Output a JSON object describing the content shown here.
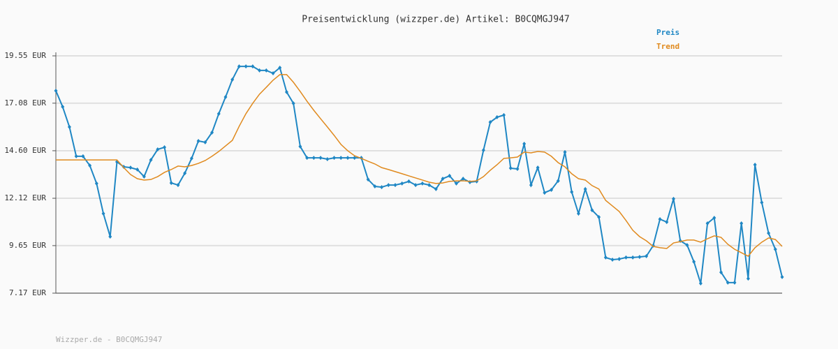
{
  "chart_data": {
    "type": "line",
    "title": "Preisentwicklung (wizzper.de) Artikel: B0CQMGJ947",
    "footer": "Wizzper.de - B0CQMGJ947",
    "ylim": [
      7.17,
      19.55
    ],
    "yticks": [
      {
        "value": 7.17,
        "label": "7.17 EUR"
      },
      {
        "value": 9.65,
        "label": "9.65 EUR"
      },
      {
        "value": 12.12,
        "label": "12.12 EUR"
      },
      {
        "value": 14.6,
        "label": "14.60 EUR"
      },
      {
        "value": 17.08,
        "label": "17.08 EUR"
      },
      {
        "value": 19.55,
        "label": "19.55 EUR"
      }
    ],
    "grid": true,
    "legend": "top-right",
    "series": [
      {
        "name": "Preis",
        "color": "#1f87c4",
        "markers": true,
        "values": [
          17.73,
          16.89,
          15.84,
          14.31,
          14.31,
          13.83,
          12.89,
          11.32,
          10.12,
          14.02,
          13.76,
          13.72,
          13.62,
          13.25,
          14.12,
          14.67,
          14.78,
          12.92,
          12.81,
          13.43,
          14.2,
          15.11,
          15.04,
          15.55,
          16.53,
          17.4,
          18.31,
          19.0,
          19.0,
          19.0,
          18.79,
          18.79,
          18.64,
          18.93,
          17.66,
          17.07,
          14.82,
          14.23,
          14.23,
          14.23,
          14.16,
          14.23,
          14.23,
          14.23,
          14.23,
          14.23,
          13.1,
          12.74,
          12.7,
          12.81,
          12.81,
          12.89,
          13.0,
          12.81,
          12.89,
          12.81,
          12.6,
          13.14,
          13.29,
          12.89,
          13.14,
          12.96,
          13.0,
          14.63,
          16.09,
          16.35,
          16.46,
          13.69,
          13.65,
          14.96,
          12.81,
          13.72,
          12.41,
          12.56,
          13.03,
          14.53,
          12.45,
          11.32,
          12.6,
          11.5,
          11.14,
          9.03,
          8.92,
          8.95,
          9.03,
          9.03,
          9.06,
          9.1,
          9.65,
          11.03,
          10.88,
          12.09,
          9.9,
          9.68,
          8.81,
          7.68,
          10.81,
          11.1,
          8.26,
          7.72,
          7.72,
          10.81,
          7.93,
          13.87,
          11.9,
          10.3,
          9.46,
          8.01
        ]
      },
      {
        "name": "Trend",
        "color": "#e08a1e",
        "markers": false,
        "values": [
          14.12,
          14.12,
          14.12,
          14.12,
          14.12,
          14.12,
          14.12,
          14.12,
          14.12,
          14.12,
          13.72,
          13.36,
          13.14,
          13.07,
          13.1,
          13.25,
          13.47,
          13.62,
          13.8,
          13.76,
          13.83,
          13.94,
          14.09,
          14.31,
          14.56,
          14.85,
          15.14,
          15.87,
          16.53,
          17.07,
          17.55,
          17.91,
          18.28,
          18.57,
          18.57,
          18.17,
          17.69,
          17.18,
          16.71,
          16.27,
          15.84,
          15.4,
          14.93,
          14.6,
          14.34,
          14.2,
          14.05,
          13.91,
          13.72,
          13.62,
          13.51,
          13.4,
          13.29,
          13.18,
          13.07,
          12.96,
          12.89,
          12.92,
          13.0,
          13.03,
          13.03,
          13.0,
          13.03,
          13.25,
          13.58,
          13.87,
          14.2,
          14.23,
          14.27,
          14.53,
          14.49,
          14.56,
          14.53,
          14.31,
          13.98,
          13.76,
          13.4,
          13.14,
          13.07,
          12.78,
          12.6,
          12.01,
          11.72,
          11.43,
          10.96,
          10.45,
          10.12,
          9.9,
          9.61,
          9.54,
          9.5,
          9.79,
          9.86,
          9.94,
          9.94,
          9.83,
          10.01,
          10.16,
          10.08,
          9.72,
          9.46,
          9.28,
          9.1,
          9.54,
          9.83,
          10.05,
          9.97,
          9.61
        ]
      }
    ]
  }
}
